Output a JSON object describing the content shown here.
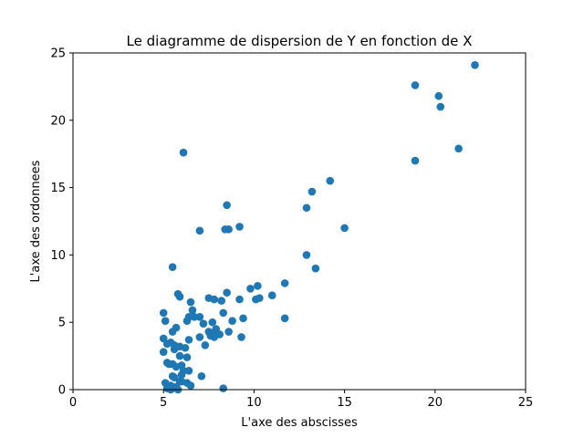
{
  "chart_data": {
    "type": "scatter",
    "title": "Le diagramme de dispersion de Y en fonction de X",
    "xlabel": "L'axe des abscisses",
    "ylabel": "L'axe des ordonnees",
    "xlim": [
      0,
      25
    ],
    "ylim": [
      0,
      25
    ],
    "xticks": [
      "0",
      "5",
      "10",
      "15",
      "20",
      "25"
    ],
    "yticks": [
      "0",
      "5",
      "10",
      "15",
      "20",
      "25"
    ],
    "grid": false,
    "legend": "none",
    "marker_color": "#1f77b4",
    "points": [
      [
        22.2,
        24.1
      ],
      [
        18.9,
        22.6
      ],
      [
        20.2,
        21.8
      ],
      [
        20.3,
        21.0
      ],
      [
        21.3,
        17.9
      ],
      [
        18.9,
        17.0
      ],
      [
        6.1,
        17.6
      ],
      [
        14.2,
        15.5
      ],
      [
        13.2,
        14.7
      ],
      [
        8.5,
        13.7
      ],
      [
        12.9,
        13.5
      ],
      [
        9.2,
        12.1
      ],
      [
        15.0,
        12.0
      ],
      [
        8.6,
        11.9
      ],
      [
        8.4,
        11.9
      ],
      [
        7.0,
        11.8
      ],
      [
        12.9,
        10.0
      ],
      [
        5.5,
        9.1
      ],
      [
        13.4,
        9.0
      ],
      [
        11.7,
        7.9
      ],
      [
        10.2,
        7.7
      ],
      [
        9.8,
        7.5
      ],
      [
        5.8,
        7.1
      ],
      [
        8.5,
        7.2
      ],
      [
        11.0,
        7.0
      ],
      [
        5.9,
        6.9
      ],
      [
        7.5,
        6.8
      ],
      [
        7.8,
        6.7
      ],
      [
        8.2,
        6.6
      ],
      [
        9.2,
        6.7
      ],
      [
        10.1,
        6.7
      ],
      [
        10.3,
        6.8
      ],
      [
        6.5,
        6.5
      ],
      [
        6.6,
        5.9
      ],
      [
        8.3,
        5.7
      ],
      [
        5.0,
        5.7
      ],
      [
        11.7,
        5.3
      ],
      [
        9.4,
        5.3
      ],
      [
        6.7,
        5.4
      ],
      [
        6.4,
        5.4
      ],
      [
        6.3,
        5.1
      ],
      [
        7.0,
        5.4
      ],
      [
        7.7,
        5.0
      ],
      [
        8.8,
        5.1
      ],
      [
        5.1,
        5.1
      ],
      [
        7.2,
        4.9
      ],
      [
        5.7,
        4.6
      ],
      [
        7.9,
        4.5
      ],
      [
        5.5,
        4.3
      ],
      [
        7.5,
        4.3
      ],
      [
        7.7,
        4.2
      ],
      [
        8.1,
        4.1
      ],
      [
        7.6,
        4.0
      ],
      [
        9.3,
        3.9
      ],
      [
        8.6,
        4.3
      ],
      [
        7.8,
        3.9
      ],
      [
        7.0,
        3.9
      ],
      [
        5.0,
        3.8
      ],
      [
        6.4,
        3.7
      ],
      [
        5.4,
        3.5
      ],
      [
        5.6,
        3.3
      ],
      [
        5.2,
        3.4
      ],
      [
        5.9,
        3.2
      ],
      [
        7.3,
        3.3
      ],
      [
        6.2,
        3.1
      ],
      [
        5.6,
        3.0
      ],
      [
        5.0,
        2.8
      ],
      [
        5.9,
        2.5
      ],
      [
        6.3,
        2.4
      ],
      [
        5.2,
        2.0
      ],
      [
        5.5,
        1.9
      ],
      [
        5.3,
        1.9
      ],
      [
        6.0,
        1.8
      ],
      [
        5.7,
        1.7
      ],
      [
        6.1,
        1.4
      ],
      [
        6.4,
        1.4
      ],
      [
        6.0,
        1.1
      ],
      [
        5.5,
        1.0
      ],
      [
        5.6,
        0.9
      ],
      [
        7.1,
        1.0
      ],
      [
        6.0,
        0.6
      ],
      [
        5.9,
        0.6
      ],
      [
        5.1,
        0.5
      ],
      [
        6.3,
        0.5
      ],
      [
        5.4,
        0.3
      ],
      [
        6.5,
        0.3
      ],
      [
        5.7,
        0.2
      ],
      [
        5.2,
        0.1
      ],
      [
        5.5,
        0.1
      ],
      [
        8.3,
        0.1
      ],
      [
        5.8,
        0.0
      ],
      [
        5.4,
        0.0
      ]
    ]
  }
}
